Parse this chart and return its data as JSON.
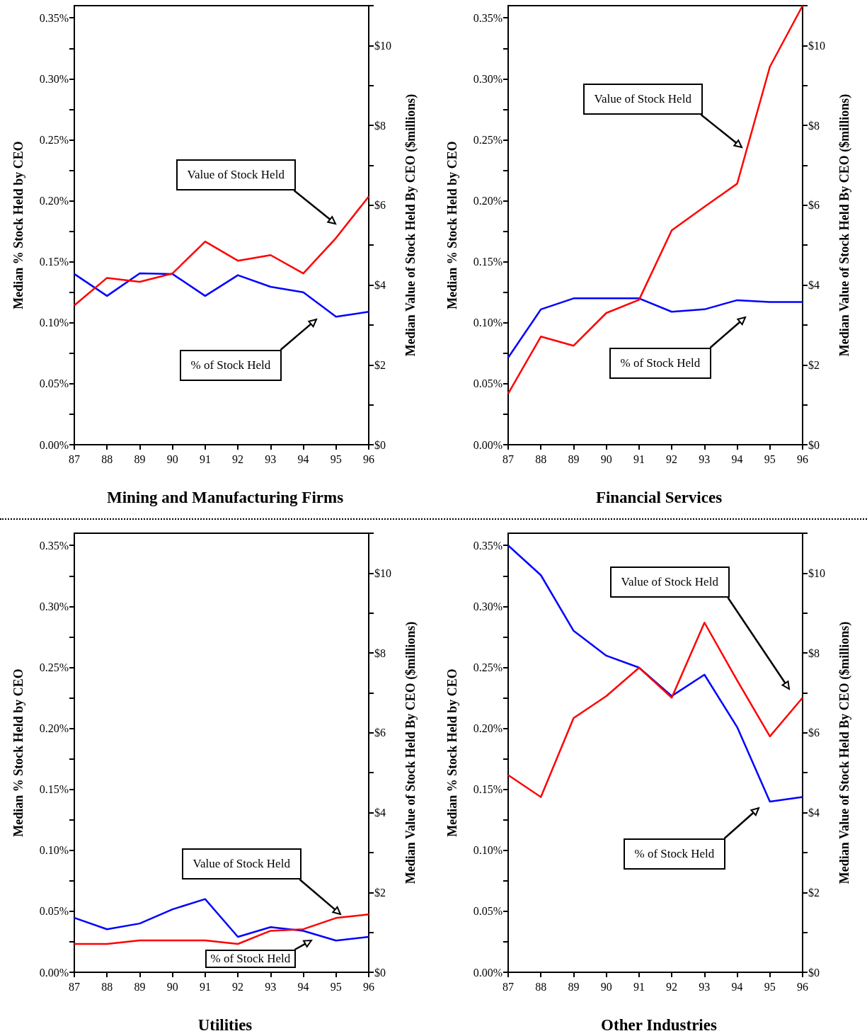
{
  "chart_data": [
    {
      "type": "line",
      "title": "Mining and Manufacturing Firms",
      "ylabel": "Median % Stock Held by CEO",
      "y2label": "Median Value of Stock Held By CEO ($millions)",
      "marker": "none",
      "line_style": "solid",
      "x": [
        87,
        88,
        89,
        90,
        91,
        92,
        93,
        94,
        95,
        96
      ],
      "xlim": [
        87,
        96
      ],
      "xticks": [
        87,
        88,
        89,
        90,
        91,
        92,
        93,
        94,
        95,
        96
      ],
      "ylim": [
        0,
        0.36
      ],
      "yticks": [
        {
          "value": 0,
          "label": "0.00%"
        },
        {
          "value": 0.025,
          "label": null
        },
        {
          "value": 0.05,
          "label": "0.05%"
        },
        {
          "value": 0.075,
          "label": null
        },
        {
          "value": 0.1,
          "label": "0.10%"
        },
        {
          "value": 0.125,
          "label": null
        },
        {
          "value": 0.15,
          "label": "0.15%"
        },
        {
          "value": 0.175,
          "label": null
        },
        {
          "value": 0.2,
          "label": "0.20%"
        },
        {
          "value": 0.225,
          "label": null
        },
        {
          "value": 0.25,
          "label": "0.25%"
        },
        {
          "value": 0.275,
          "label": null
        },
        {
          "value": 0.3,
          "label": "0.30%"
        },
        {
          "value": 0.325,
          "label": null
        },
        {
          "value": 0.35,
          "label": "0.35%"
        }
      ],
      "y2lim": [
        0,
        11
      ],
      "y2ticks": [
        {
          "value": 0,
          "label": "$0"
        },
        {
          "value": 1,
          "label": null
        },
        {
          "value": 2,
          "label": "$2"
        },
        {
          "value": 3,
          "label": null
        },
        {
          "value": 4,
          "label": "$4"
        },
        {
          "value": 5,
          "label": null
        },
        {
          "value": 6,
          "label": "$6"
        },
        {
          "value": 7,
          "label": null
        },
        {
          "value": 8,
          "label": "$8"
        },
        {
          "value": 9,
          "label": null
        },
        {
          "value": 10,
          "label": "$10"
        },
        {
          "value": 11,
          "label": null
        }
      ],
      "series": [
        {
          "color": "#0000ff",
          "values": [
            0.14,
            0.122,
            0.1405,
            0.14,
            0.122,
            0.139,
            0.1295,
            0.125,
            0.105,
            0.109
          ]
        },
        {
          "color": "#ff0000",
          "axis": "y2",
          "values": [
            3.49,
            4.18,
            4.08,
            4.29,
            5.09,
            4.61,
            4.75,
            4.29,
            5.18,
            6.22
          ]
        }
      ],
      "annotations": [
        "Value of Stock Held",
        "% of Stock Held"
      ]
    },
    {
      "type": "line",
      "title": "Financial Services",
      "ylabel": "Median % Stock Held by CEO",
      "y2label": "Median Value of Stock Held By CEO ($millions)",
      "marker": "none",
      "line_style": "solid",
      "x": [
        87,
        88,
        89,
        90,
        91,
        92,
        93,
        94,
        95,
        96
      ],
      "xlim": [
        87,
        96
      ],
      "xticks": [
        87,
        88,
        89,
        90,
        91,
        92,
        93,
        94,
        95,
        96
      ],
      "ylim": [
        0,
        0.36
      ],
      "yticks": [
        {
          "value": 0,
          "label": "0.00%"
        },
        {
          "value": 0.025,
          "label": null
        },
        {
          "value": 0.05,
          "label": "0.05%"
        },
        {
          "value": 0.075,
          "label": null
        },
        {
          "value": 0.1,
          "label": "0.10%"
        },
        {
          "value": 0.125,
          "label": null
        },
        {
          "value": 0.15,
          "label": "0.15%"
        },
        {
          "value": 0.175,
          "label": null
        },
        {
          "value": 0.2,
          "label": "0.20%"
        },
        {
          "value": 0.225,
          "label": null
        },
        {
          "value": 0.25,
          "label": "0.25%"
        },
        {
          "value": 0.275,
          "label": null
        },
        {
          "value": 0.3,
          "label": "0.30%"
        },
        {
          "value": 0.325,
          "label": null
        },
        {
          "value": 0.35,
          "label": "0.35%"
        }
      ],
      "y2lim": [
        0,
        11
      ],
      "y2ticks": [
        {
          "value": 0,
          "label": "$0"
        },
        {
          "value": 1,
          "label": null
        },
        {
          "value": 2,
          "label": "$2"
        },
        {
          "value": 3,
          "label": null
        },
        {
          "value": 4,
          "label": "$4"
        },
        {
          "value": 5,
          "label": null
        },
        {
          "value": 6,
          "label": "$6"
        },
        {
          "value": 7,
          "label": null
        },
        {
          "value": 8,
          "label": "$8"
        },
        {
          "value": 9,
          "label": null
        },
        {
          "value": 10,
          "label": "$10"
        },
        {
          "value": 11,
          "label": null
        }
      ],
      "series": [
        {
          "color": "#0000ff",
          "values": [
            0.0714,
            0.111,
            0.12,
            0.12,
            0.12,
            0.109,
            0.111,
            0.1185,
            0.117,
            0.117
          ]
        },
        {
          "color": "#ff0000",
          "axis": "y2",
          "values": [
            1.28,
            2.71,
            2.48,
            3.3,
            3.63,
            5.37,
            5.96,
            6.54,
            9.47,
            11.0
          ]
        }
      ],
      "annotations": [
        "Value of Stock Held",
        "% of Stock Held"
      ]
    },
    {
      "type": "line",
      "title": "Utilities",
      "ylabel": "Median % Stock Held by CEO",
      "y2label": "Median Value of Stock Held By CEO ($millions)",
      "marker": "none",
      "line_style": "solid",
      "x": [
        87,
        88,
        89,
        90,
        91,
        92,
        93,
        94,
        95,
        96
      ],
      "xlim": [
        87,
        96
      ],
      "xticks": [
        87,
        88,
        89,
        90,
        91,
        92,
        93,
        94,
        95,
        96
      ],
      "ylim": [
        0,
        0.36
      ],
      "yticks": [
        {
          "value": 0,
          "label": "0.00%"
        },
        {
          "value": 0.025,
          "label": null
        },
        {
          "value": 0.05,
          "label": "0.05%"
        },
        {
          "value": 0.075,
          "label": null
        },
        {
          "value": 0.1,
          "label": "0.10%"
        },
        {
          "value": 0.125,
          "label": null
        },
        {
          "value": 0.15,
          "label": "0.15%"
        },
        {
          "value": 0.175,
          "label": null
        },
        {
          "value": 0.2,
          "label": "0.20%"
        },
        {
          "value": 0.225,
          "label": null
        },
        {
          "value": 0.25,
          "label": "0.25%"
        },
        {
          "value": 0.275,
          "label": null
        },
        {
          "value": 0.3,
          "label": "0.30%"
        },
        {
          "value": 0.325,
          "label": null
        },
        {
          "value": 0.35,
          "label": "0.35%"
        }
      ],
      "y2lim": [
        0,
        11
      ],
      "y2ticks": [
        {
          "value": 0,
          "label": "$0"
        },
        {
          "value": 1,
          "label": null
        },
        {
          "value": 2,
          "label": "$2"
        },
        {
          "value": 3,
          "label": null
        },
        {
          "value": 4,
          "label": "$4"
        },
        {
          "value": 5,
          "label": null
        },
        {
          "value": 6,
          "label": "$6"
        },
        {
          "value": 7,
          "label": null
        },
        {
          "value": 8,
          "label": "$8"
        },
        {
          "value": 9,
          "label": null
        },
        {
          "value": 10,
          "label": "$10"
        },
        {
          "value": 11,
          "label": null
        }
      ],
      "series": [
        {
          "color": "#0000ff",
          "values": [
            0.0446,
            0.0353,
            0.04,
            0.0516,
            0.06,
            0.029,
            0.037,
            0.034,
            0.026,
            0.029
          ]
        },
        {
          "color": "#ff0000",
          "axis": "y2",
          "values": [
            0.71,
            0.71,
            0.8,
            0.8,
            0.8,
            0.71,
            1.04,
            1.08,
            1.36,
            1.45
          ]
        }
      ],
      "annotations": [
        "Value of Stock Held",
        "% of Stock Held"
      ]
    },
    {
      "type": "line",
      "title": "Other Industries",
      "ylabel": "Median % Stock Held by CEO",
      "y2label": "Median Value of Stock Held By CEO ($millions)",
      "marker": "none",
      "line_style": "solid",
      "x": [
        87,
        88,
        89,
        90,
        91,
        92,
        93,
        94,
        95,
        96
      ],
      "xlim": [
        87,
        96
      ],
      "xticks": [
        87,
        88,
        89,
        90,
        91,
        92,
        93,
        94,
        95,
        96
      ],
      "ylim": [
        0,
        0.36
      ],
      "yticks": [
        {
          "value": 0,
          "label": "0.00%"
        },
        {
          "value": 0.025,
          "label": null
        },
        {
          "value": 0.05,
          "label": "0.05%"
        },
        {
          "value": 0.075,
          "label": null
        },
        {
          "value": 0.1,
          "label": "0.10%"
        },
        {
          "value": 0.125,
          "label": null
        },
        {
          "value": 0.15,
          "label": "0.15%"
        },
        {
          "value": 0.175,
          "label": null
        },
        {
          "value": 0.2,
          "label": "0.20%"
        },
        {
          "value": 0.225,
          "label": null
        },
        {
          "value": 0.25,
          "label": "0.25%"
        },
        {
          "value": 0.275,
          "label": null
        },
        {
          "value": 0.3,
          "label": "0.30%"
        },
        {
          "value": 0.325,
          "label": null
        },
        {
          "value": 0.35,
          "label": "0.35%"
        }
      ],
      "y2lim": [
        0,
        11
      ],
      "y2ticks": [
        {
          "value": 0,
          "label": "$0"
        },
        {
          "value": 1,
          "label": null
        },
        {
          "value": 2,
          "label": "$2"
        },
        {
          "value": 3,
          "label": null
        },
        {
          "value": 4,
          "label": "$4"
        },
        {
          "value": 5,
          "label": null
        },
        {
          "value": 6,
          "label": "$6"
        },
        {
          "value": 7,
          "label": null
        },
        {
          "value": 8,
          "label": "$8"
        },
        {
          "value": 9,
          "label": null
        },
        {
          "value": 10,
          "label": "$10"
        },
        {
          "value": 11,
          "label": null
        }
      ],
      "series": [
        {
          "color": "#0000ff",
          "values": [
            0.35,
            0.3256,
            0.28,
            0.2596,
            0.2498,
            0.2265,
            0.244,
            0.201,
            0.14,
            0.1437
          ]
        },
        {
          "color": "#ff0000",
          "axis": "y2",
          "values": [
            4.94,
            4.39,
            6.37,
            6.92,
            7.63,
            6.88,
            8.76,
            7.31,
            5.91,
            6.88
          ]
        }
      ],
      "annotations": [
        "Value of Stock Held",
        "% of Stock Held"
      ]
    }
  ]
}
